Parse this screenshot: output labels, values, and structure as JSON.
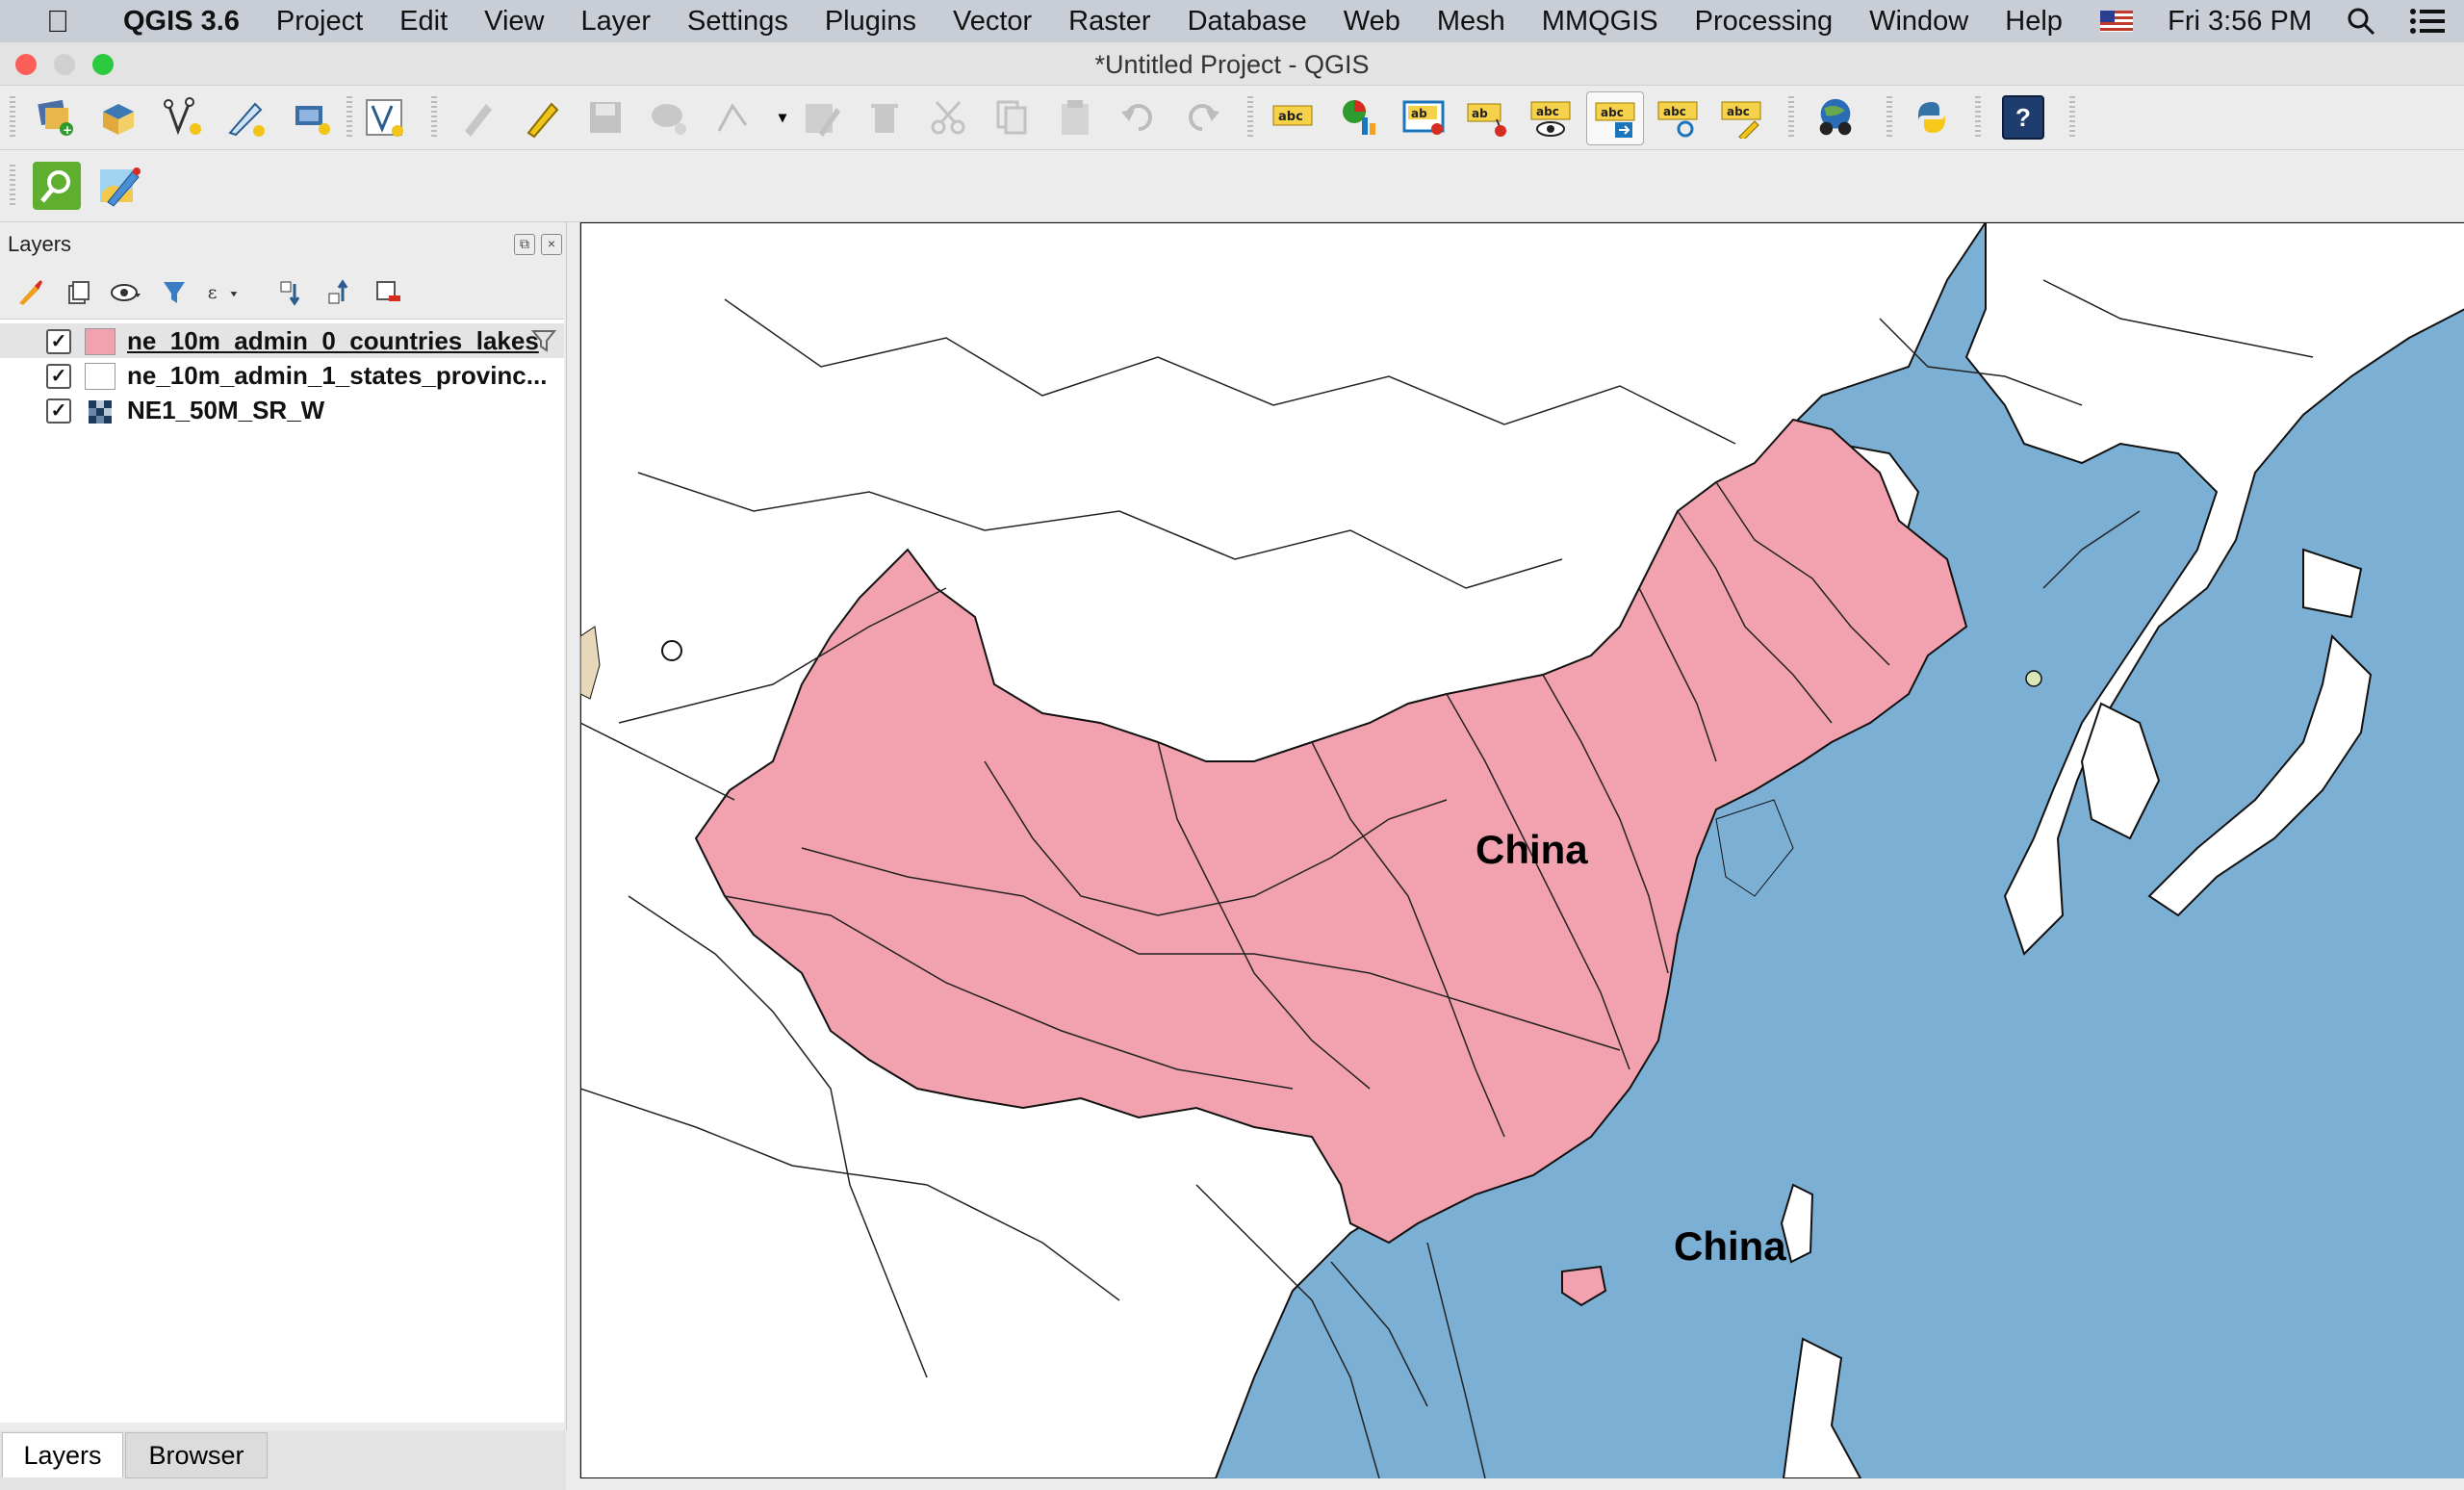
{
  "menubar": {
    "app_name": "QGIS 3.6",
    "items": [
      "Project",
      "Edit",
      "View",
      "Layer",
      "Settings",
      "Plugins",
      "Vector",
      "Raster",
      "Database",
      "Web",
      "Mesh",
      "MMQGIS",
      "Processing",
      "Window",
      "Help"
    ],
    "clock": "Fri 3:56 PM"
  },
  "window": {
    "title": "*Untitled Project - QGIS"
  },
  "toolbar": {
    "label_tool_text": "abc",
    "label_tool_text_alt": "ab",
    "help_text": "?"
  },
  "layers_panel": {
    "title": "Layers",
    "layers": [
      {
        "name": "ne_10m_admin_0_countries_lakes",
        "checked": true,
        "symbol_color": "#f2a2ae"
      },
      {
        "name": "ne_10m_admin_1_states_provinc...",
        "checked": true,
        "symbol_color": "#ffffff"
      },
      {
        "name": "NE1_50M_SR_W",
        "checked": true,
        "symbol_color": "raster-icon"
      }
    ],
    "check_mark": "✓"
  },
  "tabs": {
    "layers": "Layers",
    "browser": "Browser"
  },
  "map": {
    "labels": [
      "China",
      "China"
    ],
    "colors": {
      "ocean": "#7bafd4",
      "land": "#ffffff",
      "highlight": "#f2a2ae",
      "borders": "#111111"
    }
  }
}
